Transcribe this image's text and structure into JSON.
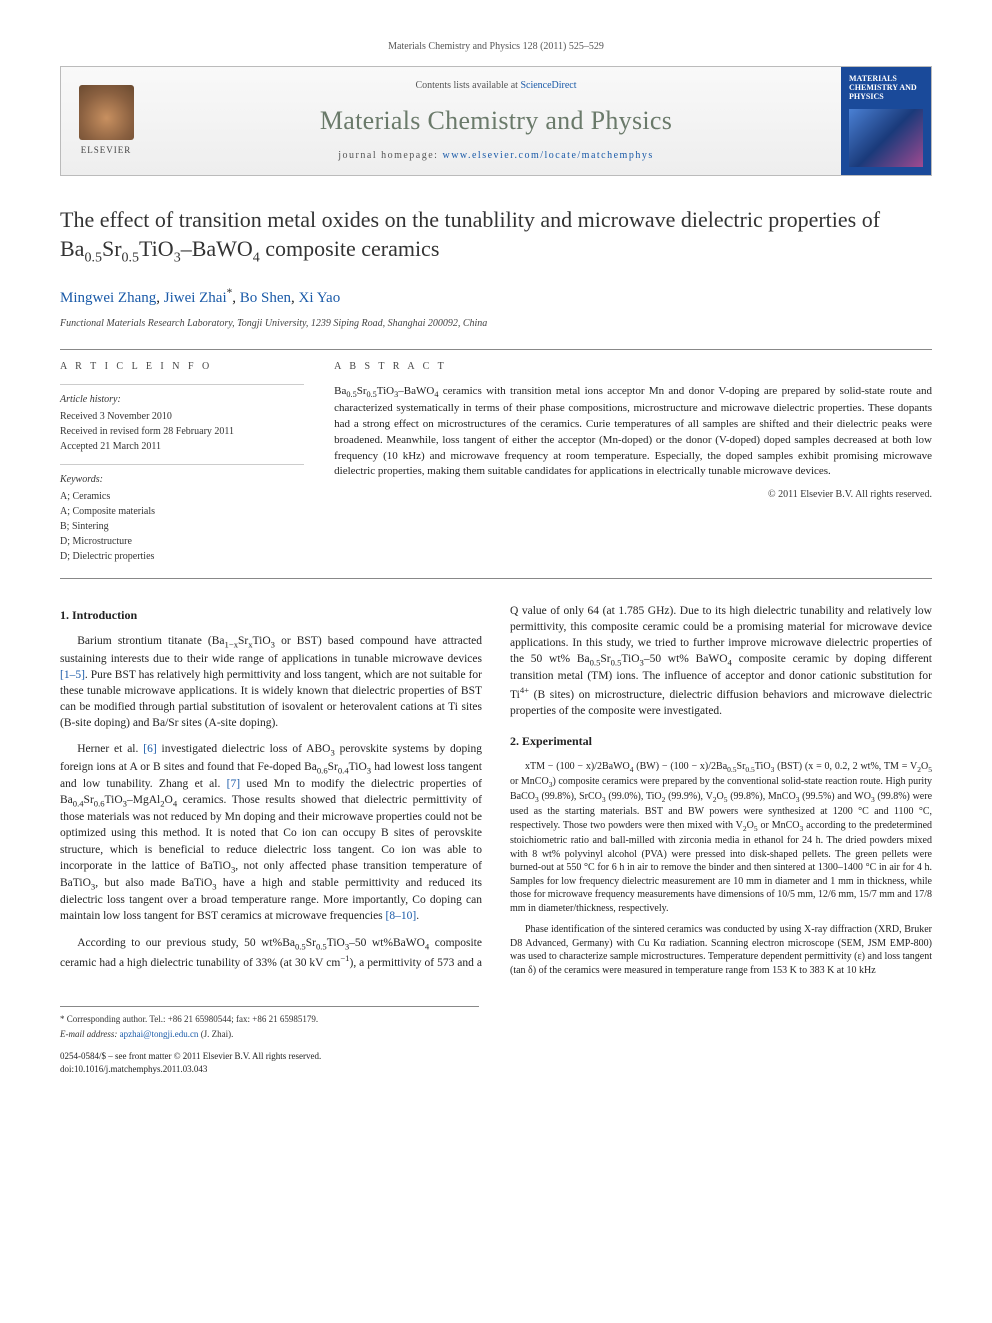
{
  "header": {
    "citation": "Materials Chemistry and Physics 128 (2011) 525–529",
    "contents_prefix": "Contents lists available at ",
    "contents_link": "ScienceDirect",
    "journal_name": "Materials Chemistry and Physics",
    "homepage_prefix": "journal homepage: ",
    "homepage_url": "www.elsevier.com/locate/matchemphys",
    "elsevier_label": "ELSEVIER",
    "cover_title": "MATERIALS CHEMISTRY AND PHYSICS"
  },
  "article": {
    "title_html": "The effect of transition metal oxides on the tunablility and microwave dielectric properties of Ba<sub>0.5</sub>Sr<sub>0.5</sub>TiO<sub>3</sub>–BaWO<sub>4</sub> composite ceramics",
    "authors_html": "<a href='#'>Mingwei Zhang</a>, <a href='#'>Jiwei Zhai</a><sup>*</sup>, <a href='#'>Bo Shen</a>, <a href='#'>Xi Yao</a>",
    "affiliation": "Functional Materials Research Laboratory, Tongji University, 1239 Siping Road, Shanghai 200092, China"
  },
  "info": {
    "heading_info": "A R T I C L E   I N F O",
    "heading_abs": "A B S T R A C T",
    "history_label": "Article history:",
    "history": [
      "Received 3 November 2010",
      "Received in revised form 28 February 2011",
      "Accepted 21 March 2011"
    ],
    "keywords_label": "Keywords:",
    "keywords": [
      "A; Ceramics",
      "A; Composite materials",
      "B; Sintering",
      "D; Microstructure",
      "D; Dielectric properties"
    ]
  },
  "abstract": {
    "text_html": "Ba<sub>0.5</sub>Sr<sub>0.5</sub>TiO<sub>3</sub>–BaWO<sub>4</sub> ceramics with transition metal ions acceptor Mn and donor V-doping are prepared by solid-state route and characterized systematically in terms of their phase compositions, microstructure and microwave dielectric properties. These dopants had a strong effect on microstructures of the ceramics. Curie temperatures of all samples are shifted and their dielectric peaks were broadened. Meanwhile, loss tangent of either the acceptor (Mn-doped) or the donor (V-doped) doped samples decreased at both low frequency (10 kHz) and microwave frequency at room temperature. Especially, the doped samples exhibit promising microwave dielectric properties, making them suitable candidates for applications in electrically tunable microwave devices.",
    "copyright": "© 2011 Elsevier B.V. All rights reserved."
  },
  "sections": {
    "intro_heading": "1. Introduction",
    "intro_p1_html": "Barium strontium titanate (Ba<sub>1−x</sub>Sr<sub>x</sub>TiO<sub>3</sub> or BST) based compound have attracted sustaining interests due to their wide range of applications in tunable microwave devices <a href='#'>[1–5]</a>. Pure BST has relatively high permittivity and loss tangent, which are not suitable for these tunable microwave applications. It is widely known that dielectric properties of BST can be modified through partial substitution of isovalent or heterovalent cations at Ti sites (B-site doping) and Ba/Sr sites (A-site doping).",
    "intro_p2_html": "Herner et al. <a href='#'>[6]</a> investigated dielectric loss of ABO<sub>3</sub> perovskite systems by doping foreign ions at A or B sites and found that Fe-doped Ba<sub>0.6</sub>Sr<sub>0.4</sub>TiO<sub>3</sub> had lowest loss tangent and low tunability. Zhang et al. <a href='#'>[7]</a> used Mn to modify the dielectric properties of Ba<sub>0.4</sub>Sr<sub>0.6</sub>TiO<sub>3</sub>–MgAl<sub>2</sub>O<sub>4</sub> ceramics. Those results showed that dielectric permittivity of those materials was not reduced by Mn doping and their microwave properties could not be optimized using this method. It is noted that Co ion can occupy B sites of perovskite structure, which is beneficial to reduce dielectric loss tangent. Co ion was able to incorporate in the lattice of BaTiO<sub>3</sub>, not only affected phase transition temperature of BaTiO<sub>3</sub>, but also made BaTiO<sub>3</sub> have a high and stable permittivity and reduced its dielectric loss tangent over a broad temperature range. More importantly, Co doping can maintain low loss tangent for BST ceramics at microwave frequencies <a href='#'>[8–10]</a>.",
    "intro_p3_html": "According to our previous study, 50 wt%Ba<sub>0.5</sub>Sr<sub>0.5</sub>TiO<sub>3</sub>–50 wt%BaWO<sub>4</sub> composite ceramic had a high dielectric tunability of 33% (at 30 kV cm<sup>−1</sup>), a permittivity of 573 and a Q value of only 64 (at 1.785 GHz). Due to its high dielectric tunability and relatively low permittivity, this composite ceramic could be a promising material for microwave device applications. In this study, we tried to further improve microwave dielectric properties of the 50 wt% Ba<sub>0.5</sub>Sr<sub>0.5</sub>TiO<sub>3</sub>–50 wt% BaWO<sub>4</sub> composite ceramic by doping different transition metal (TM) ions. The influence of acceptor and donor cationic substitution for Ti<sup>4+</sup> (B sites) on microstructure, dielectric diffusion behaviors and microwave dielectric properties of the composite were investigated.",
    "exp_heading": "2. Experimental",
    "exp_p1_html": "xTM − (100 − x)/2BaWO<sub>4</sub> (BW) − (100 − x)/2Ba<sub>0.5</sub>Sr<sub>0.5</sub>TiO<sub>3</sub> (BST) (x = 0, 0.2, 2 wt%, TM = V<sub>2</sub>O<sub>5</sub> or MnCO<sub>3</sub>) composite ceramics were prepared by the conventional solid-state reaction route. High purity BaCO<sub>3</sub> (99.8%), SrCO<sub>3</sub> (99.0%), TiO<sub>2</sub> (99.9%), V<sub>2</sub>O<sub>5</sub> (99.8%), MnCO<sub>3</sub> (99.5%) and WO<sub>3</sub> (99.8%) were used as the starting materials. BST and BW powers were synthesized at 1200 °C and 1100 °C, respectively. Those two powders were then mixed with V<sub>2</sub>O<sub>5</sub> or MnCO<sub>3</sub> according to the predetermined stoichiometric ratio and ball-milled with zirconia media in ethanol for 24 h. The dried powders mixed with 8 wt% polyvinyl alcohol (PVA) were pressed into disk-shaped pellets. The green pellets were burned-out at 550 °C for 6 h in air to remove the binder and then sintered at 1300–1400 °C in air for 4 h. Samples for low frequency dielectric measurement are 10 mm in diameter and 1 mm in thickness, while those for microwave frequency measurements have dimensions of 10/5 mm, 12/6 mm, 15/7 mm and 17/8 mm in diameter/thickness, respectively.",
    "exp_p2_html": "Phase identification of the sintered ceramics was conducted by using X-ray diffraction (XRD, Bruker D8 Advanced, Germany) with Cu Kα radiation. Scanning electron microscope (SEM, JSM EMP-800) was used to characterize sample microstructures. Temperature dependent permittivity (ε) and loss tangent (tan δ) of the ceramics were measured in temperature range from 153 K to 383 K at 10 kHz"
  },
  "footer": {
    "corr_label": "* Corresponding author. Tel.: +86 21 65980544; fax: +86 21 65985179.",
    "email_label": "E-mail address:",
    "email": "apzhai@tongji.edu.cn",
    "email_who": "(J. Zhai).",
    "line1": "0254-0584/$ – see front matter © 2011 Elsevier B.V. All rights reserved.",
    "doi": "doi:10.1016/j.matchemphys.2011.03.043"
  },
  "colors": {
    "link": "#1a5aa8",
    "journal_green": "#6a7a6a",
    "cover_blue": "#1a4a9a"
  }
}
